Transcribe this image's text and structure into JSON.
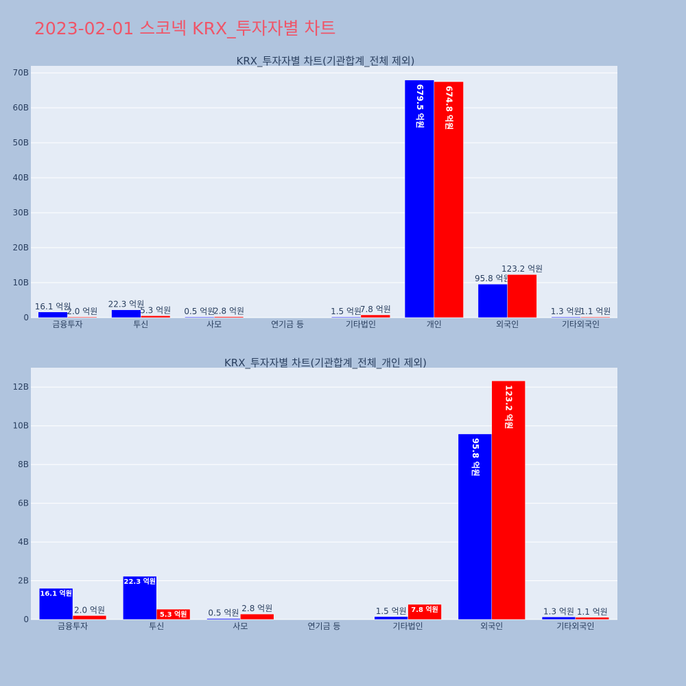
{
  "title": "2023-02-01 스코넥 KRX_투자자별 차트",
  "colors": {
    "page_bg": "#b0c4de",
    "plot_bg": "#e5ecf6",
    "grid": "#ffffff",
    "title": "#ef5568",
    "text": "#2a3f5f",
    "series_a": "#0000ff",
    "series_b": "#ff0000"
  },
  "chart_data": [
    {
      "type": "bar",
      "title": "KRX_투자자별 차트(기관합계_전체 제외)",
      "categories": [
        "금융투자",
        "투신",
        "사모",
        "연기금 등",
        "기타법인",
        "개인",
        "외국인",
        "기타외국인"
      ],
      "series": [
        {
          "color": "#0000ff",
          "values": [
            1610000000,
            2230000000,
            50000000,
            0,
            150000000,
            67950000000,
            9580000000,
            130000000
          ],
          "labels": [
            "16.1 억원",
            "22.3 억원",
            "0.5 억원",
            "",
            "1.5 억원",
            "679.5 억원",
            "95.8 억원",
            "1.3 억원"
          ]
        },
        {
          "color": "#ff0000",
          "values": [
            200000000,
            530000000,
            280000000,
            0,
            780000000,
            67480000000,
            12320000000,
            110000000
          ],
          "labels": [
            "2.0 억원",
            "5.3 억원",
            "2.8 억원",
            "",
            "7.8 억원",
            "674.8 억원",
            "123.2 억원",
            "1.1 억원"
          ]
        }
      ],
      "yticks": [
        0,
        10000000000,
        20000000000,
        30000000000,
        40000000000,
        50000000000,
        60000000000,
        70000000000
      ],
      "ytick_labels": [
        "0",
        "10B",
        "20B",
        "30B",
        "40B",
        "50B",
        "60B",
        "70B"
      ],
      "ylim": [
        0,
        72000000000
      ],
      "grid": true
    },
    {
      "type": "bar",
      "title": "KRX_투자자별 차트(기관합계_전체_개인 제외)",
      "categories": [
        "금융투자",
        "투신",
        "사모",
        "연기금 등",
        "기타법인",
        "외국인",
        "기타외국인"
      ],
      "series": [
        {
          "color": "#0000ff",
          "values": [
            1610000000,
            2230000000,
            50000000,
            0,
            150000000,
            9580000000,
            130000000
          ],
          "labels": [
            "16.1 억원",
            "22.3 억원",
            "0.5 억원",
            "",
            "1.5 억원",
            "95.8 억원",
            "1.3 억원"
          ]
        },
        {
          "color": "#ff0000",
          "values": [
            200000000,
            530000000,
            280000000,
            0,
            780000000,
            12320000000,
            110000000
          ],
          "labels": [
            "2.0 억원",
            "5.3 억원",
            "2.8 억원",
            "",
            "7.8 억원",
            "123.2 억원",
            "1.1 억원"
          ]
        }
      ],
      "yticks": [
        0,
        2000000000,
        4000000000,
        6000000000,
        8000000000,
        10000000000,
        12000000000
      ],
      "ytick_labels": [
        "0",
        "2B",
        "4B",
        "6B",
        "8B",
        "10B",
        "12B"
      ],
      "ylim": [
        0,
        13000000000
      ],
      "grid": true
    }
  ]
}
